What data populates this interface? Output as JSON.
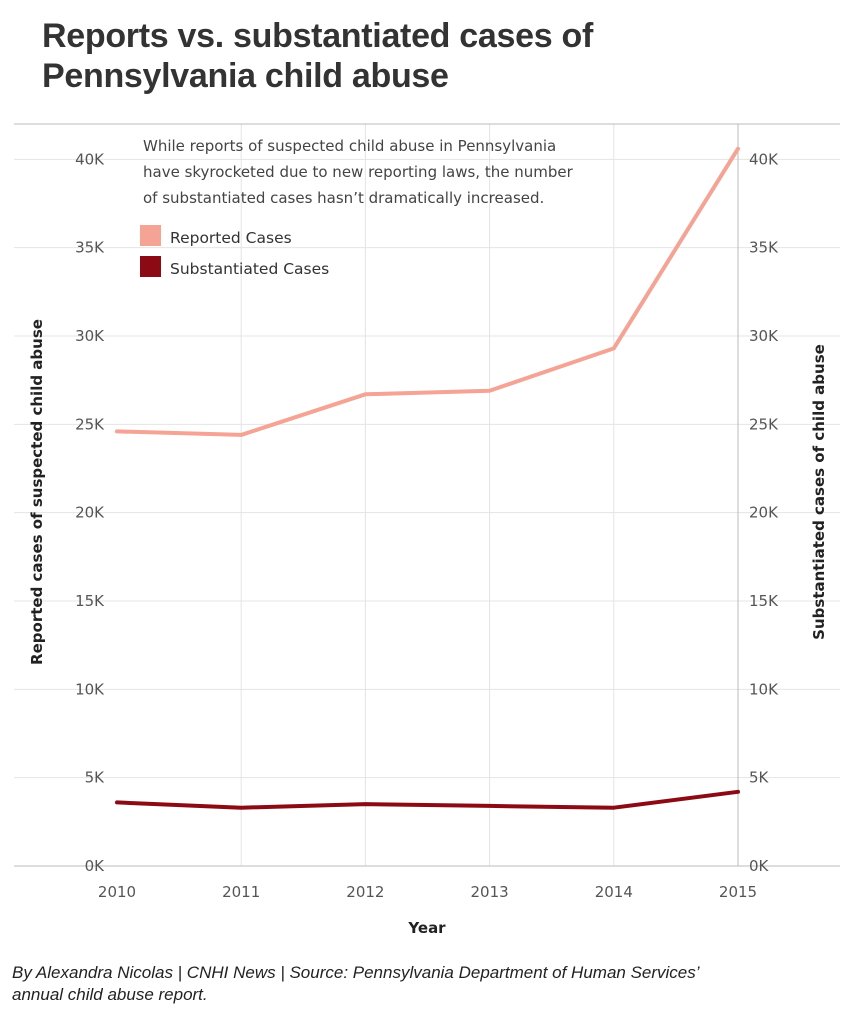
{
  "title_lines": [
    "Reports vs. substantiated cases of",
    "Pennsylvania child abuse"
  ],
  "annotation_lines": [
    "While reports of suspected child abuse in Pennsylvania",
    "have skyrocketed due to new reporting laws, the number",
    "of substantiated cases hasn’t dramatically increased."
  ],
  "source_lines": [
    "By Alexandra Nicolas | CNHI News | Source: Pennsylvania Department of Human Services’",
    "annual child abuse report."
  ],
  "colors": {
    "reported": "#f4a394",
    "substantiated": "#8b0a14",
    "grid": "#e4e4e4",
    "axis": "#bbbbbb"
  },
  "chart_data": {
    "type": "line",
    "x": [
      "2010",
      "2011",
      "2012",
      "2013",
      "2014",
      "2015"
    ],
    "xlabel": "Year",
    "ylabel_left": "Reported cases of suspected child abuse",
    "ylabel_right": "Substantiated cases of child abuse",
    "ylim": [
      0,
      42000
    ],
    "yticks": [
      0,
      5000,
      10000,
      15000,
      20000,
      25000,
      30000,
      35000,
      40000
    ],
    "ytick_labels": [
      "0K",
      "5K",
      "10K",
      "15K",
      "20K",
      "25K",
      "30K",
      "35K",
      "40K"
    ],
    "grid": true,
    "legend_position": "top-left",
    "series": [
      {
        "name": "Reported Cases",
        "axis": "left",
        "values": [
          24600,
          24400,
          26700,
          26900,
          29300,
          40600
        ]
      },
      {
        "name": "Substantiated Cases",
        "axis": "right",
        "values": [
          3600,
          3300,
          3500,
          3400,
          3300,
          4200
        ]
      }
    ]
  }
}
